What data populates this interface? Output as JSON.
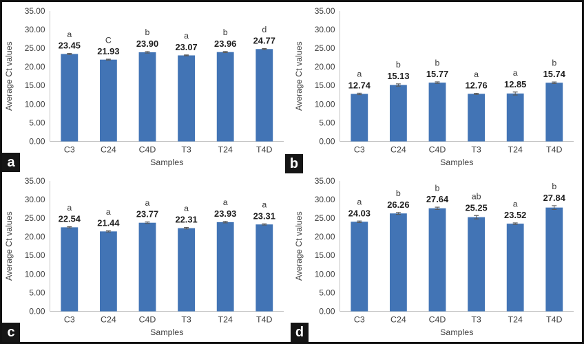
{
  "figure": {
    "bar_color": "#4274b5",
    "error_bar_color": "#595959",
    "axis_line_color": "#c2c2c2",
    "tick_label_color": "#3d3d3d",
    "value_label_color": "#1f1f1f",
    "sig_letter_color": "#3a3a3a",
    "panel_badge_bg": "#151515",
    "panel_badge_text_color": "#ffffff"
  },
  "chart_data": [
    {
      "type": "bar",
      "panel": "a",
      "title": "",
      "xlabel": "Samples",
      "ylabel": "Average Ct values",
      "ylim": [
        0,
        35
      ],
      "ytick_labels": [
        "0.00",
        "5.00",
        "10.00",
        "15.00",
        "20.00",
        "25.00",
        "30.00",
        "35.00"
      ],
      "grid": false,
      "legend": "none",
      "categories": [
        "C3",
        "C24",
        "C4D",
        "T3",
        "T24",
        "T4D"
      ],
      "values": [
        23.45,
        21.93,
        23.9,
        23.07,
        23.96,
        24.77
      ],
      "value_labels": [
        "23.45",
        "21.93",
        "23.90",
        "23.07",
        "23.96",
        "24.77"
      ],
      "sig_letters": [
        "a",
        "C",
        "b",
        "a",
        "b",
        "d"
      ],
      "errors": [
        0.15,
        0.12,
        0.2,
        0.12,
        0.15,
        0.12
      ]
    },
    {
      "type": "bar",
      "panel": "b",
      "title": "",
      "xlabel": "Samples",
      "ylabel": "Average Ct values",
      "ylim": [
        0,
        35
      ],
      "ytick_labels": [
        "0.00",
        "5.00",
        "10.00",
        "15.00",
        "20.00",
        "25.00",
        "30.00",
        "35.00"
      ],
      "grid": false,
      "legend": "none",
      "categories": [
        "C3",
        "C24",
        "C4D",
        "T3",
        "T24",
        "T4D"
      ],
      "values": [
        12.74,
        15.13,
        15.77,
        12.76,
        12.85,
        15.74
      ],
      "value_labels": [
        "12.74",
        "15.13",
        "15.77",
        "12.76",
        "12.85",
        "15.74"
      ],
      "sig_letters": [
        "a",
        "b",
        "b",
        "a",
        "a",
        "b"
      ],
      "errors": [
        0.2,
        0.3,
        0.2,
        0.15,
        0.4,
        0.2
      ]
    },
    {
      "type": "bar",
      "panel": "c",
      "title": "",
      "xlabel": "Samples",
      "ylabel": "Average Ct values",
      "ylim": [
        0,
        35
      ],
      "ytick_labels": [
        "0.00",
        "5.00",
        "10.00",
        "15.00",
        "20.00",
        "25.00",
        "30.00",
        "35.00"
      ],
      "grid": false,
      "legend": "none",
      "categories": [
        "C3",
        "C24",
        "C4D",
        "T3",
        "T24",
        "T4D"
      ],
      "values": [
        22.54,
        21.44,
        23.77,
        22.31,
        23.93,
        23.31
      ],
      "value_labels": [
        "22.54",
        "21.44",
        "23.77",
        "22.31",
        "23.93",
        "23.31"
      ],
      "sig_letters": [
        "a",
        "a",
        "a",
        "a",
        "a",
        "a"
      ],
      "errors": [
        0.15,
        0.15,
        0.2,
        0.2,
        0.2,
        0.15
      ]
    },
    {
      "type": "bar",
      "panel": "d",
      "title": "",
      "xlabel": "Samples",
      "ylabel": "Average Ct values",
      "ylim": [
        0,
        35
      ],
      "ytick_labels": [
        "0.00",
        "5.00",
        "10.00",
        "15.00",
        "20.00",
        "25.00",
        "30.00",
        "35.00"
      ],
      "grid": false,
      "legend": "none",
      "categories": [
        "C3",
        "C24",
        "C4D",
        "T3",
        "T24",
        "T4D"
      ],
      "values": [
        24.03,
        26.26,
        27.64,
        25.25,
        23.52,
        27.84
      ],
      "value_labels": [
        "24.03",
        "26.26",
        "27.64",
        "25.25",
        "23.52",
        "27.84"
      ],
      "sig_letters": [
        "a",
        "b",
        "b",
        "ab",
        "a",
        "b"
      ],
      "errors": [
        0.2,
        0.25,
        0.3,
        0.45,
        0.2,
        0.5
      ]
    }
  ]
}
